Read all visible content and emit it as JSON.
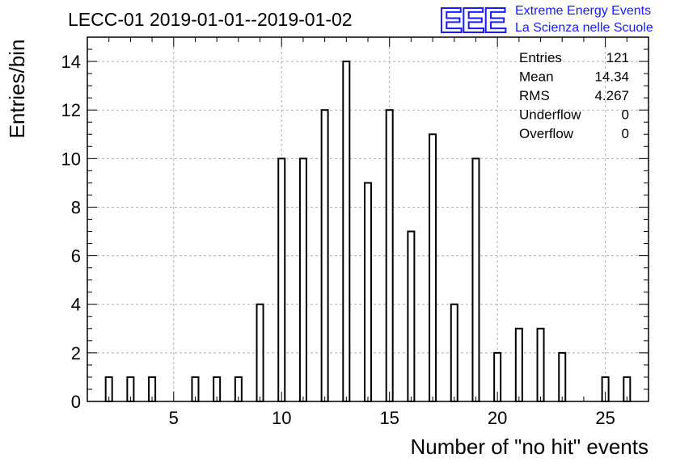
{
  "title": "LECC-01 2019-01-01--2019-01-02",
  "logo": {
    "mark": "EEE",
    "line1": "Extreme Energy Events",
    "line2": "La Scienza nelle Scuole",
    "color": "#1a1aff"
  },
  "stats": [
    {
      "label": "Entries",
      "value": "121"
    },
    {
      "label": "Mean",
      "value": "14.34"
    },
    {
      "label": "RMS",
      "value": "4.267"
    },
    {
      "label": "Underflow",
      "value": "0"
    },
    {
      "label": "Overflow",
      "value": "0"
    }
  ],
  "chart_data": {
    "type": "bar",
    "title": "LECC-01 2019-01-01--2019-01-02",
    "xlabel": "Number of \"no hit\" events",
    "ylabel": "Entries/bin",
    "xlim": [
      1,
      27
    ],
    "ylim": [
      0,
      15
    ],
    "x_ticks": [
      5,
      10,
      15,
      20,
      25
    ],
    "y_ticks": [
      0,
      2,
      4,
      6,
      8,
      10,
      12,
      14
    ],
    "grid": true,
    "bar_width": 0.3,
    "x": [
      2,
      3,
      4,
      6,
      7,
      8,
      9,
      10,
      11,
      12,
      13,
      14,
      15,
      16,
      17,
      18,
      19,
      20,
      21,
      22,
      23,
      25,
      26
    ],
    "values": [
      1,
      1,
      1,
      1,
      1,
      1,
      4,
      10,
      10,
      12,
      14,
      9,
      12,
      7,
      11,
      4,
      10,
      2,
      3,
      3,
      2,
      1,
      1
    ]
  }
}
